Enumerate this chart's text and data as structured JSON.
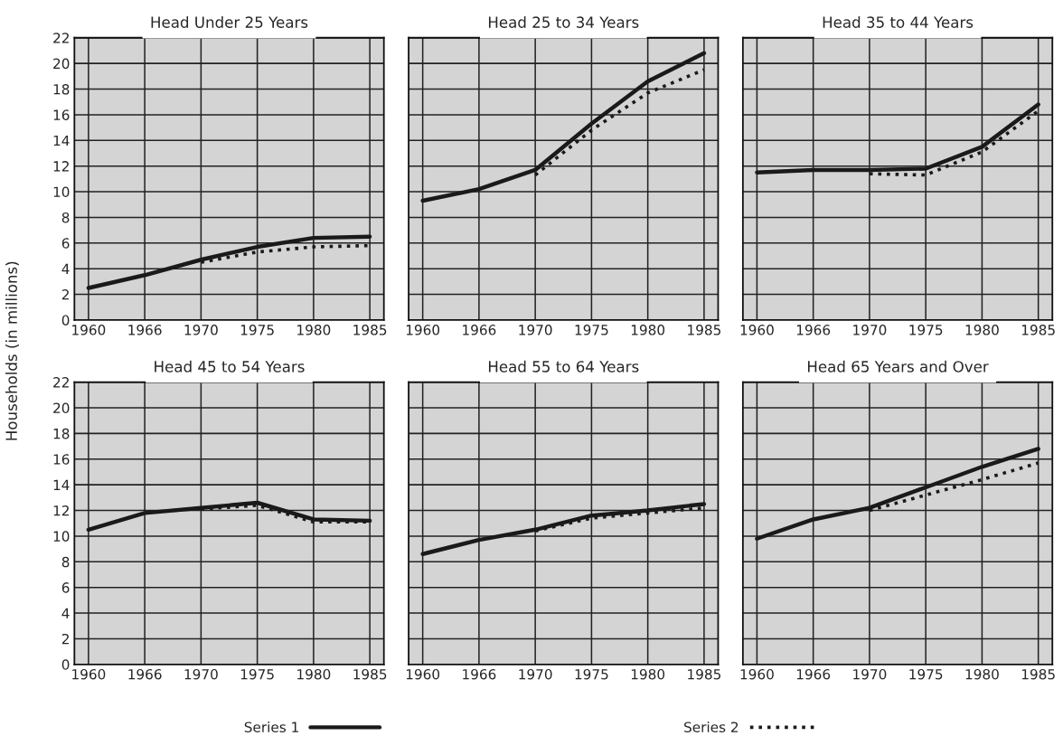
{
  "chart_data": [
    {
      "type": "line",
      "title": "Head Under 25 Years",
      "ylabel": "Households (in millions)",
      "categories": [
        "1960",
        "1966",
        "1970",
        "1975",
        "1980",
        "1985"
      ],
      "ylim": [
        0,
        22
      ],
      "yticks": [
        0,
        2,
        4,
        6,
        8,
        10,
        12,
        14,
        16,
        18,
        20,
        22
      ],
      "grid": true,
      "legend": "bottom",
      "series": [
        {
          "name": "Series 1",
          "color": "#1a1a1a",
          "line_style": "solid",
          "values": [
            2.5,
            3.5,
            4.7,
            5.7,
            6.4,
            6.5
          ]
        },
        {
          "name": "Series 2",
          "color": "#1a1a1a",
          "line_style": "dotted",
          "values": [
            null,
            null,
            4.5,
            5.3,
            5.7,
            5.8
          ]
        }
      ]
    },
    {
      "type": "line",
      "title": "Head 25 to 34 Years",
      "categories": [
        "1960",
        "1966",
        "1970",
        "1975",
        "1980",
        "1985"
      ],
      "ylim": [
        0,
        22
      ],
      "yticks": [
        0,
        2,
        4,
        6,
        8,
        10,
        12,
        14,
        16,
        18,
        20,
        22
      ],
      "grid": true,
      "tick_labels": "x",
      "series": [
        {
          "color": "#1a1a1a",
          "line_style": "solid",
          "values": [
            9.3,
            10.2,
            11.7,
            15.3,
            18.6,
            20.8
          ]
        },
        {
          "color": "#1a1a1a",
          "line_style": "dotted",
          "values": [
            null,
            null,
            11.3,
            14.8,
            17.7,
            19.5
          ]
        }
      ]
    },
    {
      "type": "line",
      "title": "Head 35 to 44 Years",
      "categories": [
        "1960",
        "1966",
        "1970",
        "1975",
        "1980",
        "1985"
      ],
      "ylim": [
        0,
        22
      ],
      "yticks": [
        0,
        2,
        4,
        6,
        8,
        10,
        12,
        14,
        16,
        18,
        20,
        22
      ],
      "grid": true,
      "tick_labels": "x",
      "series": [
        {
          "color": "#1a1a1a",
          "line_style": "solid",
          "values": [
            11.5,
            11.7,
            11.7,
            11.8,
            13.5,
            16.8
          ]
        },
        {
          "color": "#1a1a1a",
          "line_style": "dotted",
          "values": [
            null,
            null,
            11.4,
            11.3,
            13.1,
            16.3
          ]
        }
      ]
    },
    {
      "type": "line",
      "title": "Head 45 to 54 Years",
      "categories": [
        "1960",
        "1966",
        "1970",
        "1975",
        "1980",
        "1985"
      ],
      "ylim": [
        0,
        22
      ],
      "yticks": [
        0,
        2,
        4,
        6,
        8,
        10,
        12,
        14,
        16,
        18,
        20,
        22
      ],
      "grid": true,
      "series": [
        {
          "color": "#1a1a1a",
          "line_style": "solid",
          "values": [
            10.5,
            11.8,
            12.2,
            12.6,
            11.3,
            11.2
          ]
        },
        {
          "color": "#1a1a1a",
          "line_style": "dotted",
          "values": [
            null,
            null,
            12.1,
            12.4,
            11.1,
            11.1
          ]
        }
      ]
    },
    {
      "type": "line",
      "title": "Head 55 to 64 Years",
      "categories": [
        "1960",
        "1966",
        "1970",
        "1975",
        "1980",
        "1985"
      ],
      "ylim": [
        0,
        22
      ],
      "yticks": [
        0,
        2,
        4,
        6,
        8,
        10,
        12,
        14,
        16,
        18,
        20,
        22
      ],
      "grid": true,
      "tick_labels": "x",
      "series": [
        {
          "color": "#1a1a1a",
          "line_style": "solid",
          "values": [
            8.6,
            9.7,
            10.5,
            11.6,
            12.0,
            12.5
          ]
        },
        {
          "color": "#1a1a1a",
          "line_style": "dotted",
          "values": [
            null,
            null,
            10.4,
            11.4,
            11.8,
            12.2
          ]
        }
      ]
    },
    {
      "type": "line",
      "title": "Head 65 Years and Over",
      "categories": [
        "1960",
        "1966",
        "1970",
        "1975",
        "1980",
        "1985"
      ],
      "ylim": [
        0,
        22
      ],
      "yticks": [
        0,
        2,
        4,
        6,
        8,
        10,
        12,
        14,
        16,
        18,
        20,
        22
      ],
      "grid": true,
      "tick_labels": "x",
      "series": [
        {
          "color": "#1a1a1a",
          "line_style": "solid",
          "values": [
            9.8,
            11.3,
            12.2,
            13.8,
            15.4,
            16.8
          ]
        },
        {
          "color": "#1a1a1a",
          "line_style": "dotted",
          "values": [
            null,
            null,
            12.0,
            13.2,
            14.4,
            15.7
          ]
        }
      ]
    }
  ]
}
